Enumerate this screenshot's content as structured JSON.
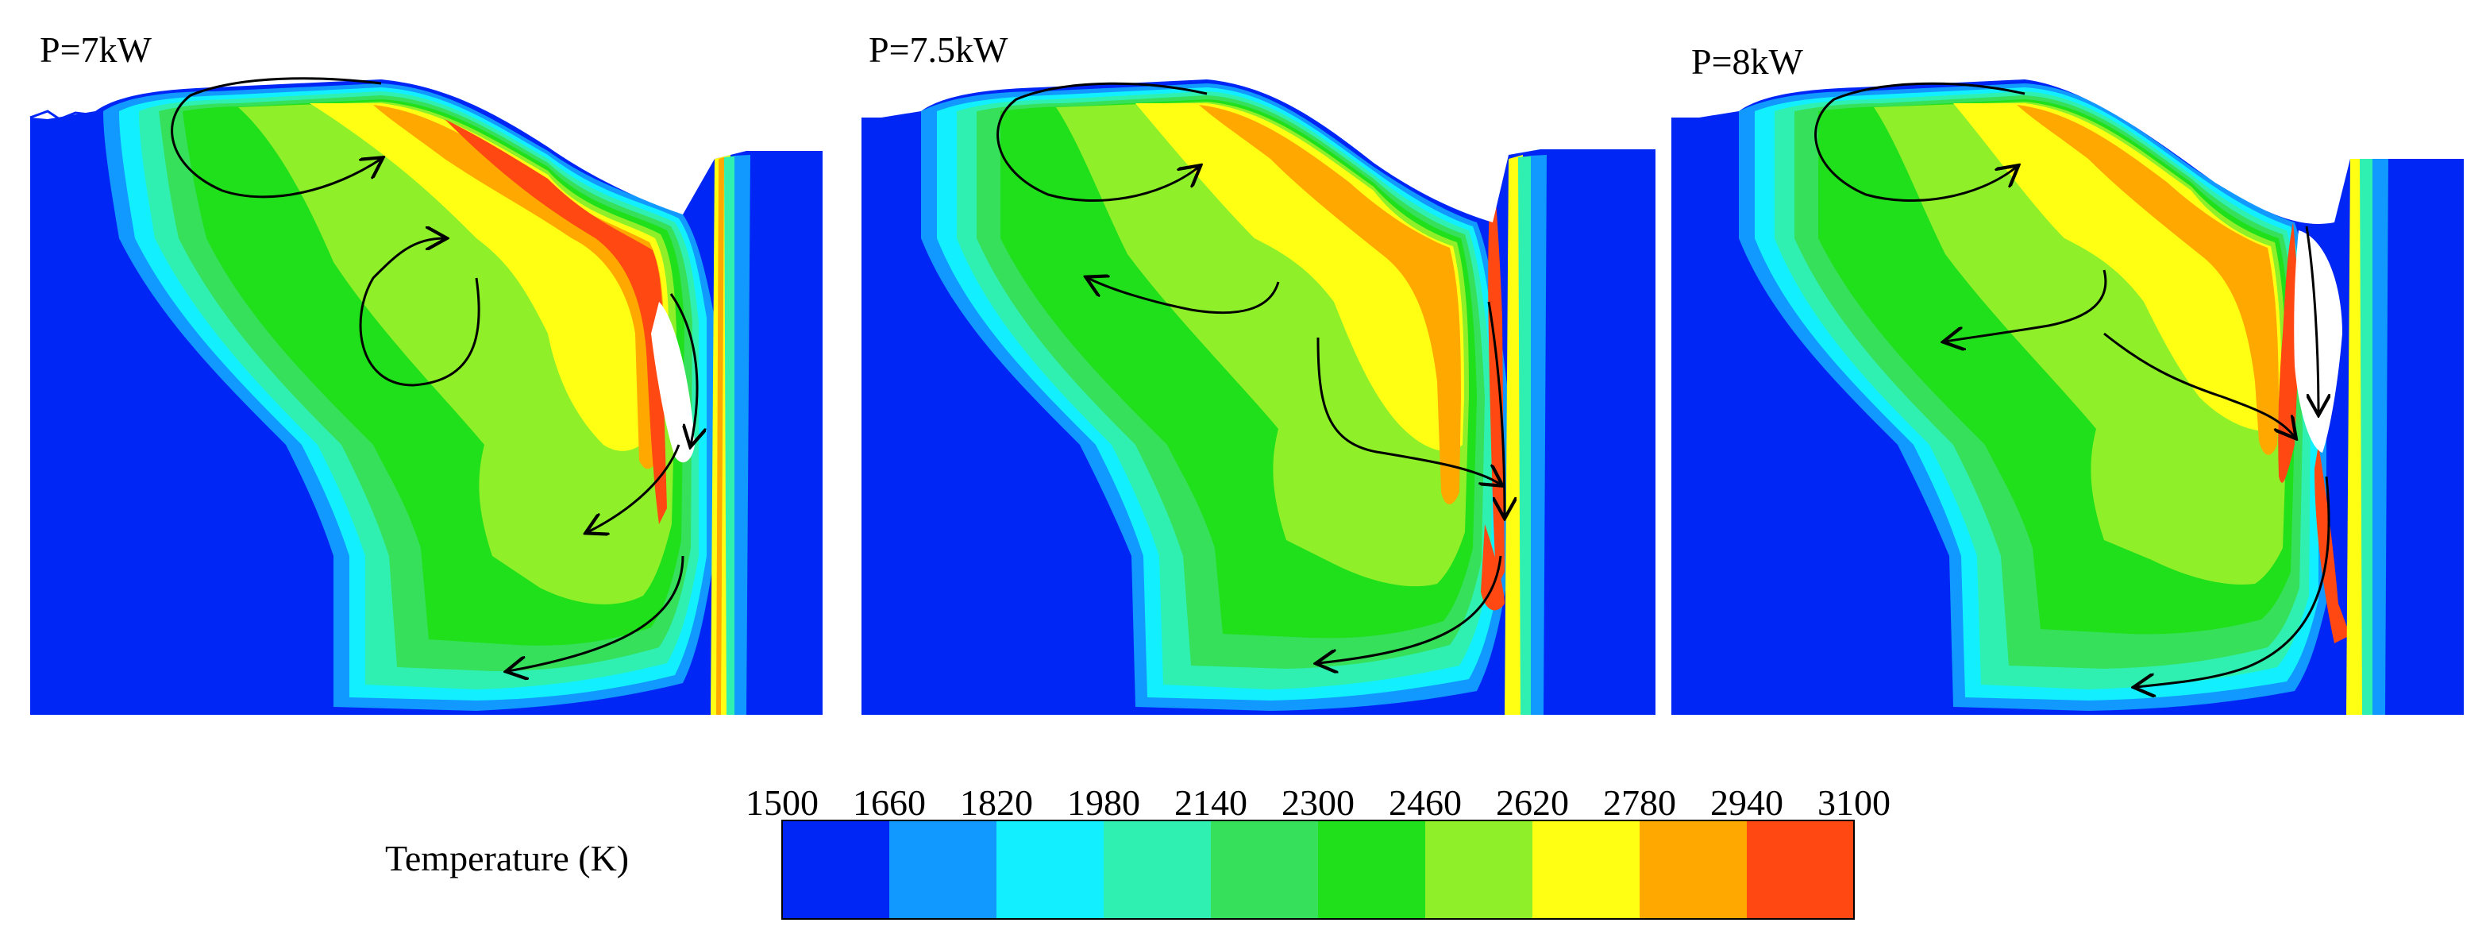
{
  "panels": [
    {
      "label": "P=7kW"
    },
    {
      "label": "P=7.5kW"
    },
    {
      "label": "P=8kW"
    }
  ],
  "legend": {
    "title": "Temperature (K)",
    "ticks": [
      "1500",
      "1660",
      "1820",
      "1980",
      "2140",
      "2300",
      "2460",
      "2620",
      "2780",
      "2940",
      "3100"
    ],
    "colors": [
      "#0026f5",
      "#1199ff",
      "#12f0ff",
      "#2ff0b0",
      "#36e05a",
      "#1fe01a",
      "#8ff02a",
      "#ffff14",
      "#ffa800",
      "#ff4812"
    ]
  }
}
